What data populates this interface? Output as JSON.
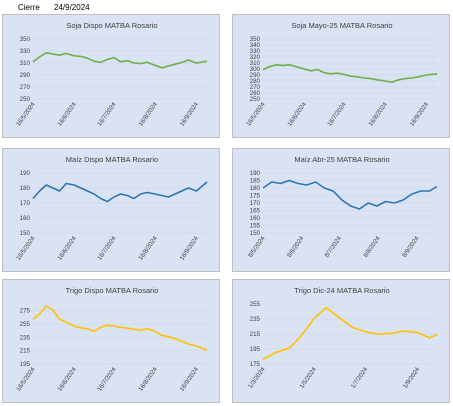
{
  "header": {
    "label": "Cierre",
    "date": "24/9/2024"
  },
  "chart_data": [
    {
      "type": "line",
      "title": "Soja Dispo MATBA Rosario",
      "color": "#70ad47",
      "ylim": [
        250,
        350
      ],
      "yticks": [
        250,
        270,
        290,
        310,
        330,
        350
      ],
      "xticks": [
        "16/5/2024",
        "16/6/2024",
        "16/7/2024",
        "16/8/2024",
        "16/9/2024"
      ],
      "x": [
        "16/5/2024",
        "21/5/2024",
        "26/5/2024",
        "31/5/2024",
        "5/6/2024",
        "10/6/2024",
        "16/6/2024",
        "21/6/2024",
        "26/6/2024",
        "1/7/2024",
        "6/7/2024",
        "11/7/2024",
        "16/7/2024",
        "21/7/2024",
        "26/7/2024",
        "31/7/2024",
        "5/8/2024",
        "10/8/2024",
        "16/8/2024",
        "21/8/2024",
        "26/8/2024",
        "31/8/2024",
        "5/9/2024",
        "10/9/2024",
        "16/9/2024",
        "24/9/2024"
      ],
      "values": [
        312,
        320,
        327,
        325,
        323,
        326,
        322,
        321,
        318,
        313,
        311,
        316,
        319,
        312,
        314,
        310,
        309,
        311,
        306,
        302,
        305,
        308,
        311,
        315,
        310,
        313
      ]
    },
    {
      "type": "line",
      "title": "Soja Mayo-25  MATBA  Rosario",
      "color": "#70ad47",
      "ylim": [
        250,
        350
      ],
      "yticks": [
        250,
        260,
        270,
        280,
        290,
        300,
        310,
        320,
        330,
        340,
        350
      ],
      "xticks": [
        "16/5/2024",
        "16/6/2024",
        "16/7/2024",
        "16/8/2024",
        "16/9/2024"
      ],
      "x": [
        "16/5/2024",
        "21/5/2024",
        "26/5/2024",
        "31/5/2024",
        "5/6/2024",
        "10/6/2024",
        "16/6/2024",
        "21/6/2024",
        "26/6/2024",
        "1/7/2024",
        "6/7/2024",
        "11/7/2024",
        "16/7/2024",
        "21/7/2024",
        "26/7/2024",
        "31/7/2024",
        "5/8/2024",
        "10/8/2024",
        "16/8/2024",
        "21/8/2024",
        "26/8/2024",
        "31/8/2024",
        "5/9/2024",
        "10/9/2024",
        "16/9/2024",
        "24/9/2024"
      ],
      "values": [
        299,
        304,
        307,
        306,
        307,
        304,
        300,
        297,
        299,
        294,
        292,
        293,
        291,
        288,
        287,
        285,
        284,
        282,
        280,
        278,
        282,
        284,
        285,
        287,
        290,
        292
      ]
    },
    {
      "type": "line",
      "title": "Maíz Dispo MATBA Rosario",
      "color": "#2e75b6",
      "ylim": [
        150,
        190
      ],
      "yticks": [
        150,
        160,
        170,
        180,
        190
      ],
      "xticks": [
        "16/5/2024",
        "16/6/2024",
        "16/7/2024",
        "16/8/2024",
        "16/9/2024"
      ],
      "x": [
        "16/5/2024",
        "21/5/2024",
        "26/5/2024",
        "31/5/2024",
        "5/6/2024",
        "10/6/2024",
        "16/6/2024",
        "21/6/2024",
        "26/6/2024",
        "1/7/2024",
        "6/7/2024",
        "11/7/2024",
        "16/7/2024",
        "21/7/2024",
        "26/7/2024",
        "31/7/2024",
        "5/8/2024",
        "10/8/2024",
        "16/8/2024",
        "21/8/2024",
        "26/8/2024",
        "31/8/2024",
        "5/9/2024",
        "10/9/2024",
        "16/9/2024",
        "24/9/2024"
      ],
      "values": [
        173,
        178,
        182,
        180,
        178,
        183,
        182,
        180,
        178,
        176,
        173,
        171,
        174,
        176,
        175,
        173,
        176,
        177,
        176,
        175,
        174,
        176,
        178,
        180,
        178,
        184
      ]
    },
    {
      "type": "line",
      "title": "Maíz Abr-25  MATBA  Rosario",
      "color": "#2e75b6",
      "ylim": [
        150,
        190
      ],
      "yticks": [
        150,
        155,
        160,
        165,
        170,
        175,
        180,
        185,
        190
      ],
      "xticks": [
        "8/5/2024",
        "8/6/2024",
        "8/7/2024",
        "8/8/2024",
        "8/9/2024"
      ],
      "x": [
        "8/5/2024",
        "15/5/2024",
        "22/5/2024",
        "29/5/2024",
        "5/6/2024",
        "12/6/2024",
        "19/6/2024",
        "26/6/2024",
        "3/7/2024",
        "10/7/2024",
        "17/7/2024",
        "24/7/2024",
        "31/7/2024",
        "7/8/2024",
        "14/8/2024",
        "21/8/2024",
        "28/8/2024",
        "4/9/2024",
        "11/9/2024",
        "18/9/2024",
        "24/9/2024"
      ],
      "values": [
        180,
        184,
        183,
        185,
        183,
        182,
        184,
        180,
        178,
        172,
        168,
        166,
        170,
        168,
        171,
        170,
        172,
        176,
        178,
        178,
        181
      ]
    },
    {
      "type": "line",
      "title": "Trigo Dispo MATBA  Rosario",
      "color": "#ffc000",
      "ylim": [
        195,
        285
      ],
      "yticks": [
        195,
        215,
        235,
        255,
        275
      ],
      "xticks": [
        "16/5/2024",
        "16/6/2024",
        "16/7/2024",
        "16/8/2024",
        "16/9/2024"
      ],
      "x": [
        "16/5/2024",
        "21/5/2024",
        "26/5/2024",
        "31/5/2024",
        "5/6/2024",
        "10/6/2024",
        "16/6/2024",
        "21/6/2024",
        "26/6/2024",
        "1/7/2024",
        "6/7/2024",
        "11/7/2024",
        "16/7/2024",
        "21/7/2024",
        "26/7/2024",
        "31/7/2024",
        "5/8/2024",
        "10/8/2024",
        "16/8/2024",
        "21/8/2024",
        "26/8/2024",
        "31/8/2024",
        "5/9/2024",
        "10/9/2024",
        "16/9/2024",
        "24/9/2024"
      ],
      "values": [
        262,
        270,
        282,
        276,
        262,
        258,
        252,
        249,
        248,
        244,
        250,
        253,
        252,
        250,
        249,
        247,
        246,
        248,
        244,
        238,
        236,
        233,
        229,
        225,
        222,
        216
      ]
    },
    {
      "type": "line",
      "title": "Trigo Dic-24 MATBA  Rosario",
      "color": "#ffc000",
      "ylim": [
        175,
        255
      ],
      "yticks": [
        175,
        195,
        215,
        235,
        255
      ],
      "xticks": [
        "1/3/2024",
        "1/5/2024",
        "1/7/2024",
        "1/9/2024"
      ],
      "x": [
        "1/3/2024",
        "15/3/2024",
        "1/4/2024",
        "15/4/2024",
        "1/5/2024",
        "15/5/2024",
        "1/6/2024",
        "15/6/2024",
        "1/7/2024",
        "15/7/2024",
        "1/8/2024",
        "15/8/2024",
        "1/9/2024",
        "15/9/2024",
        "24/9/2024"
      ],
      "values": [
        181,
        190,
        196,
        212,
        236,
        250,
        236,
        224,
        218,
        215,
        216,
        219,
        217,
        210,
        214
      ]
    }
  ]
}
